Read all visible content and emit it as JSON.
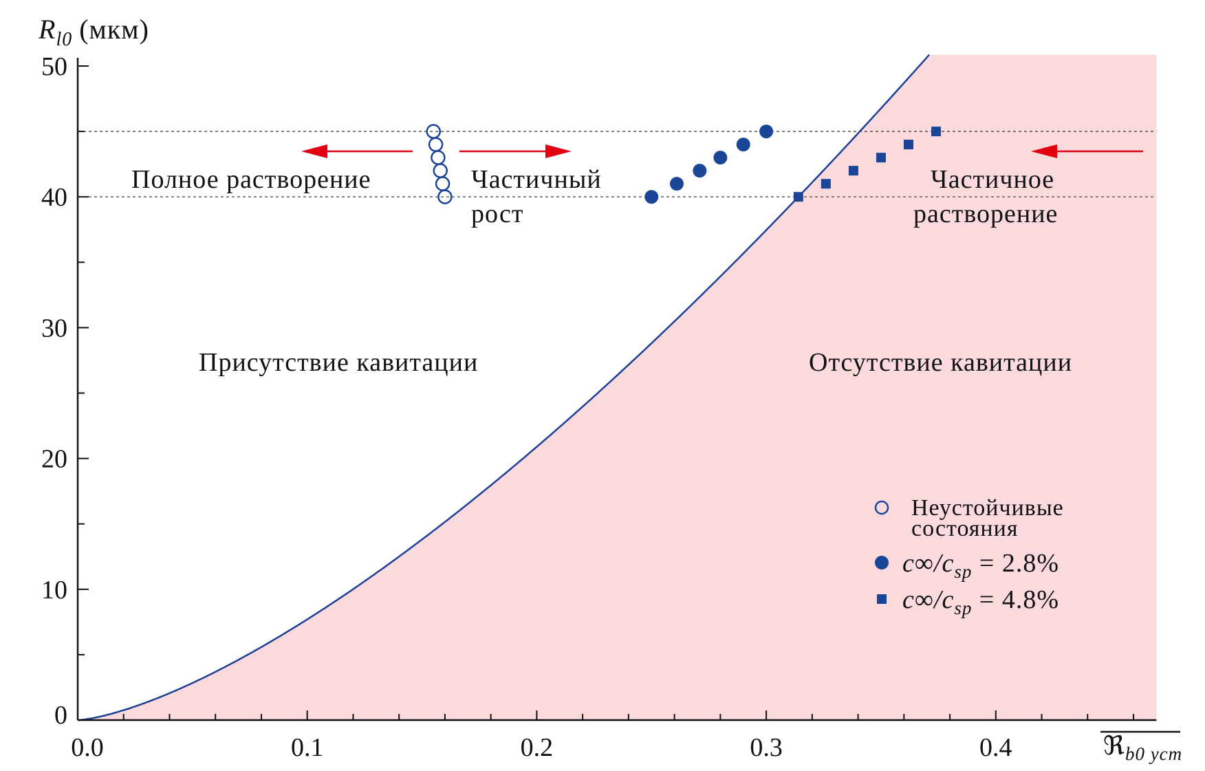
{
  "chart_data": {
    "type": "scatter",
    "title": "",
    "ylabel": {
      "symbol": "R",
      "sub": "l0",
      "unit": "(мкм)"
    },
    "xlabel": {
      "symbol": "ℜ",
      "sub": "b0 уст",
      "overline": true
    },
    "xlim": [
      0,
      0.47
    ],
    "ylim": [
      0,
      51
    ],
    "x_ticks": [
      0.0,
      0.1,
      0.2,
      0.3,
      0.4
    ],
    "x_tick_labels": [
      "0.0",
      "0.1",
      "0.2",
      "0.3",
      "0.4"
    ],
    "x_minor_step": 0.02,
    "y_ticks": [
      0,
      10,
      20,
      30,
      40,
      50
    ],
    "y_tick_labels": [
      "0",
      "10",
      "20",
      "30",
      "40",
      "50"
    ],
    "y_minor_step": 5,
    "reference_lines_y": [
      40,
      45
    ],
    "boundary_curve": {
      "description": "y = 7.7*(x/0.1)^1.44",
      "coef": 7.7,
      "power": 1.44,
      "shaded_side": "right"
    },
    "colors": {
      "marker": "#1b4597",
      "curve": "#1b3f95",
      "shade": "#fadadd",
      "arrow": "#e0000f"
    },
    "series": [
      {
        "name": "Неустойчивые состояния",
        "marker": "open-circle",
        "x": [
          0.155,
          0.156,
          0.157,
          0.158,
          0.159,
          0.16
        ],
        "y": [
          45,
          44,
          43,
          42,
          41,
          40
        ]
      },
      {
        "name": "c∞/csp = 2.8%",
        "marker": "filled-circle",
        "x": [
          0.25,
          0.261,
          0.271,
          0.28,
          0.29,
          0.3
        ],
        "y": [
          40,
          41,
          42,
          43,
          44,
          45
        ]
      },
      {
        "name": "c∞/csp = 4.8%",
        "marker": "square",
        "x": [
          0.314,
          0.326,
          0.338,
          0.35,
          0.362,
          0.374
        ],
        "y": [
          40,
          41,
          42,
          43,
          44,
          45
        ]
      }
    ],
    "legend": {
      "placement": "lower-right",
      "unstable_line1": "Неустойчивые",
      "unstable_line2": "состояния",
      "c1": {
        "a": "c",
        "inf": "∞",
        "slash": "/c",
        "sub": "sp",
        "value": " = 2.8%"
      },
      "c2": {
        "a": "c",
        "inf": "∞",
        "slash": "/c",
        "sub": "sp",
        "value": " = 4.8%"
      }
    },
    "annotations": {
      "full_dissolution": "Полное растворение",
      "partial_growth_1": "Частичный",
      "partial_growth_2": "рост",
      "partial_dissolution_1": "Частичное",
      "partial_dissolution_2": "растворение",
      "cavitation_present": "Присутствие кавитации",
      "cavitation_absent": "Отсутствие кавитации"
    }
  }
}
